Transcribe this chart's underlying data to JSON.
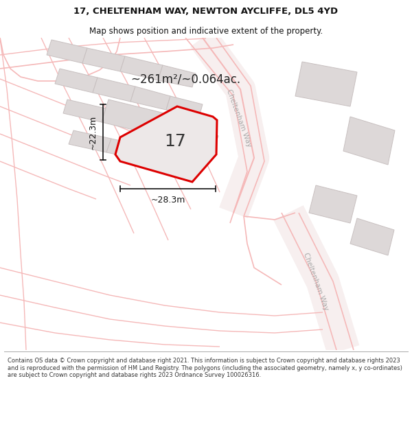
{
  "title_line1": "17, CHELTENHAM WAY, NEWTON AYCLIFFE, DL5 4YD",
  "title_line2": "Map shows position and indicative extent of the property.",
  "area_text": "~261m²/~0.064ac.",
  "property_number": "17",
  "dim_width": "~28.3m",
  "dim_height": "~22.3m",
  "footer_text": "Contains OS data © Crown copyright and database right 2021. This information is subject to Crown copyright and database rights 2023 and is reproduced with the permission of HM Land Registry. The polygons (including the associated geometry, namely x, y co-ordinates) are subject to Crown copyright and database rights 2023 Ordnance Survey 100026316.",
  "map_bg": "#faf5f5",
  "road_line_color": "#f5b8b8",
  "road_line_color2": "#f0a0a0",
  "building_fill": "#ddd8d8",
  "building_edge": "#c8c0c0",
  "property_fill": "#ede8e8",
  "property_stroke": "#dd0000",
  "text_color": "#111111",
  "area_text_color": "#222222",
  "road_label_color": "#aaaaaa",
  "footer_bg": "#ffffff",
  "header_bg": "#ffffff",
  "dim_line_color": "#111111"
}
